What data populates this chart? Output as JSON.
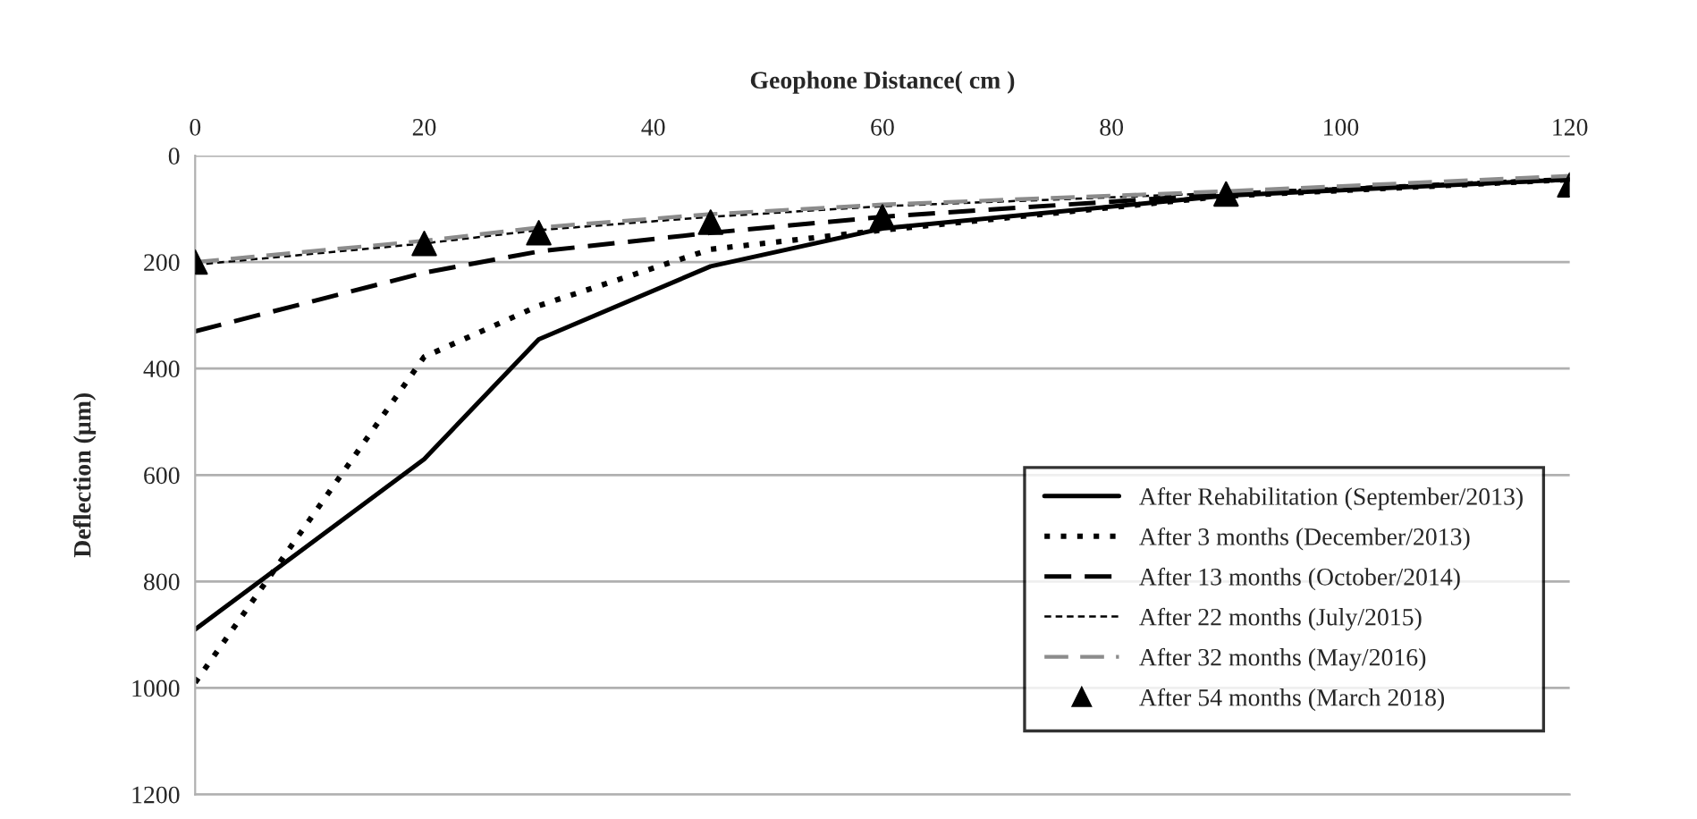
{
  "chart_data": {
    "type": "line",
    "xlabel": "Geophone Distance( cm )",
    "ylabel": "Deflection (µm)",
    "x": [
      0,
      20,
      30,
      45,
      60,
      90,
      120
    ],
    "xlim": [
      0,
      120
    ],
    "xticks": [
      0,
      20,
      40,
      60,
      80,
      100,
      120
    ],
    "ylim": [
      1200,
      0
    ],
    "yticks": [
      0,
      200,
      400,
      600,
      800,
      1000,
      1200
    ],
    "grid": "y",
    "legend": "bottom right",
    "series": [
      {
        "name": "After Rehabilitation (September/2013)",
        "color": "#000000",
        "line_style": "solid",
        "values": [
          890,
          570,
          345,
          208,
          137,
          75,
          45
        ]
      },
      {
        "name": "After 3 months (December/2013)",
        "color": "#000000",
        "line_style": "dotted",
        "values": [
          990,
          378,
          282,
          176,
          140,
          76,
          45
        ]
      },
      {
        "name": "After 13 months (October/2014)",
        "color": "#000000",
        "line_style": "dashed",
        "values": [
          330,
          220,
          180,
          145,
          115,
          72,
          45
        ]
      },
      {
        "name": "After 22 months (July/2015)",
        "color": "#000000",
        "line_style": "dashed",
        "values": [
          205,
          165,
          140,
          115,
          95,
          70,
          42
        ]
      },
      {
        "name": "After 32 months (May/2016)",
        "color": "#8c8c8c",
        "line_style": "dashed",
        "values": [
          200,
          160,
          135,
          110,
          92,
          67,
          38
        ]
      },
      {
        "name": "After 54 months (March 2018)",
        "type": "scatter",
        "marker": "triangle",
        "color": "#000000",
        "values": [
          200,
          165,
          145,
          125,
          115,
          72,
          55
        ]
      }
    ]
  }
}
